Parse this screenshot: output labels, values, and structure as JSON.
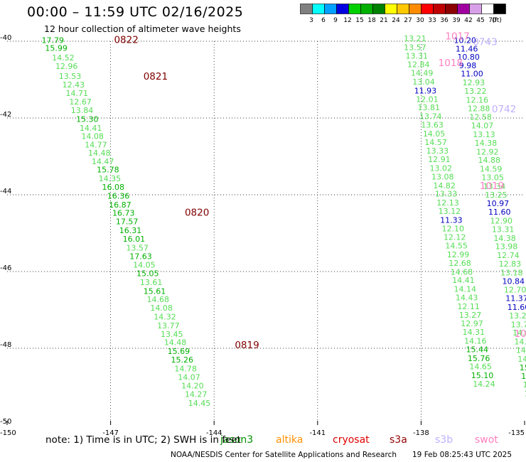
{
  "header": {
    "title": "00:00 – 11:59 UTC 02/16/2025",
    "subtitle": "12 hour collection of altimeter wave heights"
  },
  "colorbar": {
    "unit": "(ft)",
    "bins": [
      {
        "label": "3",
        "color": "#808080"
      },
      {
        "label": "6",
        "color": "#00ffff"
      },
      {
        "label": "9",
        "color": "#00a0ff"
      },
      {
        "label": "12",
        "color": "#0000e0"
      },
      {
        "label": "15",
        "color": "#00d000"
      },
      {
        "label": "18",
        "color": "#00b000"
      },
      {
        "label": "21",
        "color": "#008000"
      },
      {
        "label": "24",
        "color": "#ffff00"
      },
      {
        "label": "27",
        "color": "#ffc800"
      },
      {
        "label": "30",
        "color": "#ff8c00"
      },
      {
        "label": "33",
        "color": "#ff0000"
      },
      {
        "label": "36",
        "color": "#c00000"
      },
      {
        "label": "39",
        "color": "#8b0000"
      },
      {
        "label": "42",
        "color": "#a000a0"
      },
      {
        "label": "45",
        "color": "#d8a0e8"
      },
      {
        "label": "70",
        "color": "#ffffff"
      },
      {
        "label": "",
        "color": "#000000"
      }
    ]
  },
  "legend": [
    {
      "name": "jason3",
      "color": "#009000"
    },
    {
      "name": "altika",
      "color": "#ff9000"
    },
    {
      "name": "cryosat",
      "color": "#e00000"
    },
    {
      "name": "s3a",
      "color": "#900000"
    },
    {
      "name": "s3b",
      "color": "#c0b0ff"
    },
    {
      "name": "swot",
      "color": "#ff80c0"
    }
  ],
  "footer": {
    "note": "note:  1) Time is in UTC; 2) SWH is in feet",
    "credit": "NOAA/NESDIS Center for Satellite Applications and Research",
    "generated": "19 Feb 08:25:43 UTC 2025"
  },
  "chart_data": {
    "type": "scatter",
    "xlim": [
      -150,
      -135
    ],
    "ylim": [
      -50,
      -40
    ],
    "x_ticks": [
      "-150",
      "-147",
      "-144",
      "-141",
      "-138",
      "-135"
    ],
    "y_ticks": [
      "-50",
      "-48",
      "-46",
      "-44",
      "-42",
      "-40"
    ],
    "grid": true,
    "time_labels": [
      {
        "text": "0822",
        "x": -146.9,
        "y": -40.05,
        "color": "#800000"
      },
      {
        "text": "0821",
        "x": -146.05,
        "y": -41.0,
        "color": "#800000"
      },
      {
        "text": "0820",
        "x": -144.85,
        "y": -44.55,
        "color": "#800000"
      },
      {
        "text": "0819",
        "x": -143.4,
        "y": -48.0,
        "color": "#800000"
      },
      {
        "text": "1017",
        "x": -137.3,
        "y": -39.95,
        "color": "#ff80c0"
      },
      {
        "text": "1018",
        "x": -137.5,
        "y": -40.65,
        "color": "#ff80c0"
      },
      {
        "text": "1019",
        "x": -136.3,
        "y": -43.85,
        "color": "#ff80c0"
      },
      {
        "text": "1020",
        "x": -135.3,
        "y": -47.7,
        "color": "#ff80c0"
      },
      {
        "text": "0743",
        "x": -136.5,
        "y": -40.1,
        "color": "#c0b0ff"
      },
      {
        "text": "0742",
        "x": -135.95,
        "y": -41.85,
        "color": "#c0b0ff"
      },
      {
        "text": "0741",
        "x": -134.85,
        "y": -45.3,
        "color": "#c0b0ff"
      }
    ],
    "tracks": [
      {
        "name": "jason3",
        "points": [
          {
            "x": -149.0,
            "y": -40.05,
            "v": "17.79",
            "c": "#00b000"
          },
          {
            "x": -148.9,
            "y": -40.25,
            "v": "15.99",
            "c": "#00b000"
          },
          {
            "x": -148.7,
            "y": -40.5,
            "v": "14.52",
            "c": "#55dd55"
          },
          {
            "x": -148.6,
            "y": -40.72,
            "v": "12.96",
            "c": "#55dd55"
          },
          {
            "x": -148.5,
            "y": -40.98,
            "v": "13.53",
            "c": "#55dd55"
          },
          {
            "x": -148.4,
            "y": -41.2,
            "v": "12.43",
            "c": "#55dd55"
          },
          {
            "x": -148.3,
            "y": -41.43,
            "v": "14.71",
            "c": "#55dd55"
          },
          {
            "x": -148.2,
            "y": -41.65,
            "v": "12.67",
            "c": "#55dd55"
          },
          {
            "x": -148.15,
            "y": -41.87,
            "v": "13.84",
            "c": "#55dd55"
          },
          {
            "x": -148.0,
            "y": -42.1,
            "v": "15.30",
            "c": "#00b000"
          },
          {
            "x": -147.9,
            "y": -42.33,
            "v": "14.41",
            "c": "#55dd55"
          },
          {
            "x": -147.85,
            "y": -42.55,
            "v": "14.08",
            "c": "#55dd55"
          },
          {
            "x": -147.75,
            "y": -42.77,
            "v": "14.77",
            "c": "#55dd55"
          },
          {
            "x": -147.65,
            "y": -42.98,
            "v": "14.48",
            "c": "#55dd55"
          },
          {
            "x": -147.55,
            "y": -43.2,
            "v": "14.47",
            "c": "#55dd55"
          },
          {
            "x": -147.4,
            "y": -43.42,
            "v": "15.78",
            "c": "#00b000"
          },
          {
            "x": -147.35,
            "y": -43.65,
            "v": "14.35",
            "c": "#55dd55"
          },
          {
            "x": -147.25,
            "y": -43.87,
            "v": "16.08",
            "c": "#00b000"
          },
          {
            "x": -147.1,
            "y": -44.1,
            "v": "16.36",
            "c": "#00b000"
          },
          {
            "x": -147.05,
            "y": -44.33,
            "v": "16.87",
            "c": "#00b000"
          },
          {
            "x": -146.95,
            "y": -44.55,
            "v": "16.73",
            "c": "#00b000"
          },
          {
            "x": -146.85,
            "y": -44.77,
            "v": "17.57",
            "c": "#00b000"
          },
          {
            "x": -146.75,
            "y": -45.0,
            "v": "16.31",
            "c": "#00b000"
          },
          {
            "x": -146.65,
            "y": -45.22,
            "v": "16.01",
            "c": "#00b000"
          },
          {
            "x": -146.55,
            "y": -45.45,
            "v": "13.57",
            "c": "#55dd55"
          },
          {
            "x": -146.45,
            "y": -45.68,
            "v": "17.63",
            "c": "#00b000"
          },
          {
            "x": -146.35,
            "y": -45.9,
            "v": "14.05",
            "c": "#55dd55"
          },
          {
            "x": -146.25,
            "y": -46.12,
            "v": "15.05",
            "c": "#00b000"
          },
          {
            "x": -146.15,
            "y": -46.35,
            "v": "13.61",
            "c": "#55dd55"
          },
          {
            "x": -146.05,
            "y": -46.58,
            "v": "15.61",
            "c": "#00b000"
          },
          {
            "x": -145.95,
            "y": -46.8,
            "v": "14.68",
            "c": "#55dd55"
          },
          {
            "x": -145.85,
            "y": -47.02,
            "v": "14.08",
            "c": "#55dd55"
          },
          {
            "x": -145.75,
            "y": -47.25,
            "v": "14.32",
            "c": "#55dd55"
          },
          {
            "x": -145.65,
            "y": -47.48,
            "v": "13.77",
            "c": "#55dd55"
          },
          {
            "x": -145.55,
            "y": -47.7,
            "v": "13.45",
            "c": "#55dd55"
          },
          {
            "x": -145.45,
            "y": -47.92,
            "v": "14.48",
            "c": "#55dd55"
          },
          {
            "x": -145.35,
            "y": -48.15,
            "v": "15.69",
            "c": "#00b000"
          },
          {
            "x": -145.25,
            "y": -48.37,
            "v": "15.26",
            "c": "#00b000"
          },
          {
            "x": -145.15,
            "y": -48.6,
            "v": "14.78",
            "c": "#55dd55"
          },
          {
            "x": -145.05,
            "y": -48.82,
            "v": "14.07",
            "c": "#55dd55"
          },
          {
            "x": -144.95,
            "y": -49.05,
            "v": "14.20",
            "c": "#55dd55"
          },
          {
            "x": -144.85,
            "y": -49.27,
            "v": "14.27",
            "c": "#55dd55"
          },
          {
            "x": -144.75,
            "y": -49.5,
            "v": "14.45",
            "c": "#55dd55"
          }
        ]
      },
      {
        "name": "swot",
        "points": [
          {
            "x": -138.5,
            "y": -40.0,
            "v": "13.21",
            "c": "#55dd55"
          },
          {
            "x": -138.5,
            "y": -40.23,
            "v": "13.57",
            "c": "#55dd55"
          },
          {
            "x": -138.45,
            "y": -40.45,
            "v": "13.31",
            "c": "#55dd55"
          },
          {
            "x": -138.4,
            "y": -40.68,
            "v": "12.84",
            "c": "#55dd55"
          },
          {
            "x": -138.3,
            "y": -40.9,
            "v": "14.49",
            "c": "#55dd55"
          },
          {
            "x": -138.25,
            "y": -41.13,
            "v": "13.04",
            "c": "#55dd55"
          },
          {
            "x": -138.2,
            "y": -41.36,
            "v": "11.93",
            "c": "#0000c0"
          },
          {
            "x": -138.15,
            "y": -41.58,
            "v": "12.01",
            "c": "#55dd55"
          },
          {
            "x": -138.1,
            "y": -41.8,
            "v": "13.81",
            "c": "#55dd55"
          },
          {
            "x": -138.05,
            "y": -42.03,
            "v": "13.74",
            "c": "#55dd55"
          },
          {
            "x": -138.0,
            "y": -42.25,
            "v": "13.63",
            "c": "#55dd55"
          },
          {
            "x": -137.95,
            "y": -42.48,
            "v": "14.05",
            "c": "#55dd55"
          },
          {
            "x": -137.9,
            "y": -42.7,
            "v": "14.57",
            "c": "#55dd55"
          },
          {
            "x": -137.85,
            "y": -42.93,
            "v": "13.33",
            "c": "#55dd55"
          },
          {
            "x": -137.8,
            "y": -43.15,
            "v": "12.91",
            "c": "#55dd55"
          },
          {
            "x": -137.75,
            "y": -43.38,
            "v": "13.02",
            "c": "#55dd55"
          },
          {
            "x": -137.7,
            "y": -43.6,
            "v": "13.08",
            "c": "#55dd55"
          },
          {
            "x": -137.65,
            "y": -43.83,
            "v": "14.82",
            "c": "#55dd55"
          },
          {
            "x": -137.6,
            "y": -44.05,
            "v": "13.33",
            "c": "#55dd55"
          },
          {
            "x": -137.55,
            "y": -44.28,
            "v": "12.13",
            "c": "#55dd55"
          },
          {
            "x": -137.5,
            "y": -44.5,
            "v": "13.12",
            "c": "#55dd55"
          },
          {
            "x": -137.45,
            "y": -44.73,
            "v": "11.33",
            "c": "#0000c0"
          },
          {
            "x": -137.4,
            "y": -44.95,
            "v": "12.10",
            "c": "#55dd55"
          },
          {
            "x": -137.35,
            "y": -45.18,
            "v": "12.12",
            "c": "#55dd55"
          },
          {
            "x": -137.3,
            "y": -45.4,
            "v": "14.55",
            "c": "#55dd55"
          },
          {
            "x": -137.25,
            "y": -45.63,
            "v": "12.99",
            "c": "#55dd55"
          },
          {
            "x": -137.2,
            "y": -45.85,
            "v": "12.68",
            "c": "#55dd55"
          },
          {
            "x": -137.15,
            "y": -46.08,
            "v": "14.68",
            "c": "#55dd55"
          },
          {
            "x": -137.1,
            "y": -46.3,
            "v": "14.41",
            "c": "#55dd55"
          },
          {
            "x": -137.05,
            "y": -46.53,
            "v": "14.14",
            "c": "#55dd55"
          },
          {
            "x": -137.0,
            "y": -46.75,
            "v": "14.43",
            "c": "#55dd55"
          },
          {
            "x": -136.95,
            "y": -46.98,
            "v": "12.11",
            "c": "#55dd55"
          },
          {
            "x": -136.9,
            "y": -47.2,
            "v": "13.27",
            "c": "#55dd55"
          },
          {
            "x": -136.85,
            "y": -47.43,
            "v": "12.97",
            "c": "#55dd55"
          },
          {
            "x": -136.8,
            "y": -47.65,
            "v": "14.31",
            "c": "#55dd55"
          },
          {
            "x": -136.75,
            "y": -47.88,
            "v": "14.16",
            "c": "#55dd55"
          },
          {
            "x": -136.7,
            "y": -48.1,
            "v": "15.44",
            "c": "#00b000"
          },
          {
            "x": -136.65,
            "y": -48.33,
            "v": "15.76",
            "c": "#00b000"
          },
          {
            "x": -136.6,
            "y": -48.55,
            "v": "14.65",
            "c": "#55dd55"
          },
          {
            "x": -136.55,
            "y": -48.78,
            "v": "15.10",
            "c": "#00b000"
          },
          {
            "x": -136.5,
            "y": -49.0,
            "v": "14.24",
            "c": "#55dd55"
          }
        ]
      },
      {
        "name": "s3b",
        "points": [
          {
            "x": -137.05,
            "y": -40.05,
            "v": "10.20",
            "c": "#0000c0"
          },
          {
            "x": -137.0,
            "y": -40.27,
            "v": "11.46",
            "c": "#0000c0"
          },
          {
            "x": -136.95,
            "y": -40.48,
            "v": "10.80",
            "c": "#0000c0"
          },
          {
            "x": -136.9,
            "y": -40.7,
            "v": "9.98",
            "c": "#0000c0"
          },
          {
            "x": -136.85,
            "y": -40.92,
            "v": "11.00",
            "c": "#0000c0"
          },
          {
            "x": -136.8,
            "y": -41.15,
            "v": "12.93",
            "c": "#55dd55"
          },
          {
            "x": -136.75,
            "y": -41.37,
            "v": "13.22",
            "c": "#55dd55"
          },
          {
            "x": -136.7,
            "y": -41.6,
            "v": "12.16",
            "c": "#55dd55"
          },
          {
            "x": -136.65,
            "y": -41.82,
            "v": "12.88",
            "c": "#55dd55"
          },
          {
            "x": -136.6,
            "y": -42.05,
            "v": "12.58",
            "c": "#55dd55"
          },
          {
            "x": -136.55,
            "y": -42.27,
            "v": "14.07",
            "c": "#55dd55"
          },
          {
            "x": -136.5,
            "y": -42.5,
            "v": "13.13",
            "c": "#55dd55"
          },
          {
            "x": -136.45,
            "y": -42.72,
            "v": "14.38",
            "c": "#55dd55"
          },
          {
            "x": -136.4,
            "y": -42.95,
            "v": "12.92",
            "c": "#55dd55"
          },
          {
            "x": -136.35,
            "y": -43.17,
            "v": "14.88",
            "c": "#55dd55"
          },
          {
            "x": -136.3,
            "y": -43.4,
            "v": "14.59",
            "c": "#55dd55"
          },
          {
            "x": -136.25,
            "y": -43.62,
            "v": "13.05",
            "c": "#55dd55"
          },
          {
            "x": -136.2,
            "y": -43.85,
            "v": "13.34",
            "c": "#55dd55"
          },
          {
            "x": -136.15,
            "y": -44.07,
            "v": "13.25",
            "c": "#55dd55"
          },
          {
            "x": -136.1,
            "y": -44.3,
            "v": "10.97",
            "c": "#0000c0"
          },
          {
            "x": -136.05,
            "y": -44.52,
            "v": "11.60",
            "c": "#0000c0"
          },
          {
            "x": -136.0,
            "y": -44.75,
            "v": "12.90",
            "c": "#55dd55"
          },
          {
            "x": -135.95,
            "y": -44.97,
            "v": "13.31",
            "c": "#55dd55"
          },
          {
            "x": -135.9,
            "y": -45.2,
            "v": "14.38",
            "c": "#55dd55"
          },
          {
            "x": -135.85,
            "y": -45.42,
            "v": "13.98",
            "c": "#55dd55"
          },
          {
            "x": -135.8,
            "y": -45.65,
            "v": "12.74",
            "c": "#55dd55"
          },
          {
            "x": -135.75,
            "y": -45.87,
            "v": "12.83",
            "c": "#55dd55"
          },
          {
            "x": -135.7,
            "y": -46.1,
            "v": "13.18",
            "c": "#55dd55"
          },
          {
            "x": -135.65,
            "y": -46.32,
            "v": "10.84",
            "c": "#0000c0"
          },
          {
            "x": -135.6,
            "y": -46.55,
            "v": "12.70",
            "c": "#55dd55"
          },
          {
            "x": -135.55,
            "y": -46.77,
            "v": "11.37",
            "c": "#0000c0"
          },
          {
            "x": -135.5,
            "y": -47.0,
            "v": "11.60",
            "c": "#0000c0"
          },
          {
            "x": -135.45,
            "y": -47.22,
            "v": "13.27",
            "c": "#55dd55"
          },
          {
            "x": -135.4,
            "y": -47.45,
            "v": "13.77",
            "c": "#55dd55"
          },
          {
            "x": -135.35,
            "y": -47.67,
            "v": "14.89",
            "c": "#55dd55"
          },
          {
            "x": -135.3,
            "y": -47.9,
            "v": "14.84",
            "c": "#55dd55"
          },
          {
            "x": -135.25,
            "y": -48.12,
            "v": "14.83",
            "c": "#55dd55"
          },
          {
            "x": -135.2,
            "y": -48.35,
            "v": "14.77",
            "c": "#55dd55"
          },
          {
            "x": -135.15,
            "y": -48.57,
            "v": "15.75",
            "c": "#00b000"
          },
          {
            "x": -135.1,
            "y": -48.8,
            "v": "15.74",
            "c": "#00b000"
          },
          {
            "x": -135.05,
            "y": -49.02,
            "v": "14.62",
            "c": "#55dd55"
          },
          {
            "x": -135.0,
            "y": -49.25,
            "v": "15.18",
            "c": "#00b000"
          }
        ]
      }
    ]
  }
}
